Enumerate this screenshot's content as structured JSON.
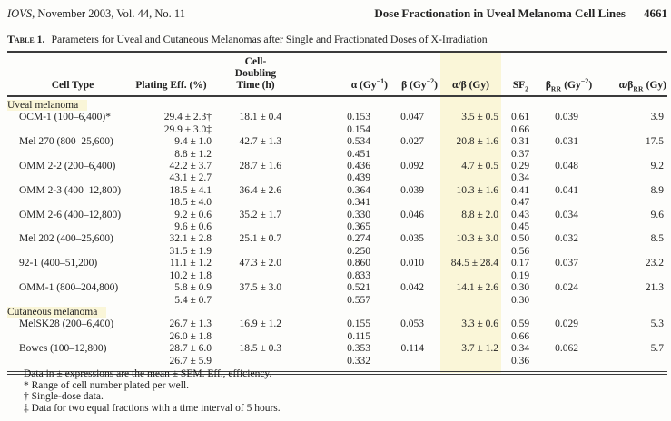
{
  "page": {
    "journal_title": "IOVS",
    "journal_rest": ", November 2003, Vol. 44, No. 11",
    "running_title": "Dose Fractionation in Uveal Melanoma Cell Lines",
    "page_number": "4661"
  },
  "caption": {
    "label": "Table 1.",
    "text": "Parameters for Uveal and Cutaneous Melanomas after Single and Fractionated Doses of X-Irradiation"
  },
  "colors": {
    "column_highlight": "#faf6d8",
    "rule": "#3b3b3b",
    "text": "#222222"
  },
  "table": {
    "header": {
      "cell_type": "Cell Type",
      "plating": "Plating Eff. (%)",
      "doubling_line1": "Cell-Doubling",
      "doubling_line2": "Time (h)",
      "alpha_pre": "α (Gy",
      "alpha_sup": "−1",
      "alpha_post": ")",
      "beta_pre": "β (Gy",
      "beta_sup": "−2",
      "beta_post": ")",
      "alpha_beta": "α/β (Gy)",
      "sf2_pre": "SF",
      "sf2_sub": "2",
      "beta_rr_pre": "β",
      "beta_rr_sub": "RR",
      "beta_rr_mid": " (Gy",
      "beta_rr_sup": "−2",
      "beta_rr_post": ")",
      "ab_rr_pre": "α/β",
      "ab_rr_sub": "RR",
      "ab_rr_mid": " (Gy)"
    },
    "sections": [
      {
        "header": "Uveal melanoma",
        "rows": [
          {
            "name": "OCM-1 (100–6,400)*",
            "plating": [
              "29.4 ± 2.3†",
              "29.9 ± 3.0‡"
            ],
            "doubling": "18.1 ± 0.4",
            "alpha": [
              "0.153",
              "0.154"
            ],
            "beta": "0.047",
            "alpha_beta": "3.5 ± 0.5",
            "sf2": [
              "0.61",
              "0.66"
            ],
            "beta_rr": "0.039",
            "alpha_beta_rr": "3.9"
          },
          {
            "name": "Mel 270 (800–25,600)",
            "plating": [
              "9.4 ± 1.0",
              "8.8 ± 1.2"
            ],
            "doubling": "42.7 ± 1.3",
            "alpha": [
              "0.534",
              "0.451"
            ],
            "beta": "0.027",
            "alpha_beta": "20.8 ± 1.6",
            "sf2": [
              "0.31",
              "0.37"
            ],
            "beta_rr": "0.031",
            "alpha_beta_rr": "17.5"
          },
          {
            "name": "OMM 2-2 (200–6,400)",
            "plating": [
              "42.2 ± 3.7",
              "43.1 ± 2.7"
            ],
            "doubling": "28.7 ± 1.6",
            "alpha": [
              "0.436",
              "0.439"
            ],
            "beta": "0.092",
            "alpha_beta": "4.7 ± 0.5",
            "sf2": [
              "0.29",
              "0.34"
            ],
            "beta_rr": "0.048",
            "alpha_beta_rr": "9.2"
          },
          {
            "name": "OMM 2-3 (400–12,800)",
            "plating": [
              "18.5 ± 4.1",
              "18.5 ± 4.0"
            ],
            "doubling": "36.4 ± 2.6",
            "alpha": [
              "0.364",
              "0.341"
            ],
            "beta": "0.039",
            "alpha_beta": "10.3 ± 1.6",
            "sf2": [
              "0.41",
              "0.47"
            ],
            "beta_rr": "0.041",
            "alpha_beta_rr": "8.9"
          },
          {
            "name": "OMM 2-6 (400–12,800)",
            "plating": [
              "9.2 ± 0.6",
              "9.6 ± 0.6"
            ],
            "doubling": "35.2 ± 1.7",
            "alpha": [
              "0.330",
              "0.365"
            ],
            "beta": "0.046",
            "alpha_beta": "8.8 ± 2.0",
            "sf2": [
              "0.43",
              "0.45"
            ],
            "beta_rr": "0.034",
            "alpha_beta_rr": "9.6"
          },
          {
            "name": "Mel 202 (400–25,600)",
            "plating": [
              "32.1 ± 2.8",
              "31.5 ± 1.9"
            ],
            "doubling": "25.1 ± 0.7",
            "alpha": [
              "0.274",
              "0.250"
            ],
            "beta": "0.035",
            "alpha_beta": "10.3 ± 3.0",
            "sf2": [
              "0.50",
              "0.56"
            ],
            "beta_rr": "0.032",
            "alpha_beta_rr": "8.5"
          },
          {
            "name": "92-1 (400–51,200)",
            "plating": [
              "11.1 ± 1.2",
              "10.2 ± 1.8"
            ],
            "doubling": "47.3 ± 2.0",
            "alpha": [
              "0.860",
              "0.833"
            ],
            "beta": "0.010",
            "alpha_beta": "84.5 ± 28.4",
            "sf2": [
              "0.17",
              "0.19"
            ],
            "beta_rr": "0.037",
            "alpha_beta_rr": "23.2"
          },
          {
            "name": "OMM-1 (800–204,800)",
            "plating": [
              "5.8 ± 0.9",
              "5.4 ± 0.7"
            ],
            "doubling": "37.5 ± 3.0",
            "alpha": [
              "0.521",
              "0.557"
            ],
            "beta": "0.042",
            "alpha_beta": "14.1 ± 2.6",
            "sf2": [
              "0.30",
              "0.30"
            ],
            "beta_rr": "0.024",
            "alpha_beta_rr": "21.3"
          }
        ]
      },
      {
        "header": "Cutaneous melanoma",
        "rows": [
          {
            "name": "MelSK28 (200–6,400)",
            "plating": [
              "26.7 ± 1.3",
              "26.0 ± 1.8"
            ],
            "doubling": "16.9 ± 1.2",
            "alpha": [
              "0.155",
              "0.115"
            ],
            "beta": "0.053",
            "alpha_beta": "3.3 ± 0.6",
            "sf2": [
              "0.59",
              "0.66"
            ],
            "beta_rr": "0.029",
            "alpha_beta_rr": "5.3"
          },
          {
            "name": "Bowes (100–12,800)",
            "plating": [
              "28.7 ± 6.0",
              "26.7 ± 5.9"
            ],
            "doubling": "18.5 ± 0.3",
            "alpha": [
              "0.353",
              "0.332"
            ],
            "beta": "0.114",
            "alpha_beta": "3.7 ± 1.2",
            "sf2": [
              "0.34",
              "0.36"
            ],
            "beta_rr": "0.062",
            "alpha_beta_rr": "5.7"
          }
        ]
      }
    ]
  },
  "footnotes": [
    "Data in ± expressions are the mean ± SEM. Eff., efficiency.",
    "* Range of cell number plated per well.",
    "† Single-dose data.",
    "‡ Data for two equal fractions with a time interval of 5 hours."
  ]
}
